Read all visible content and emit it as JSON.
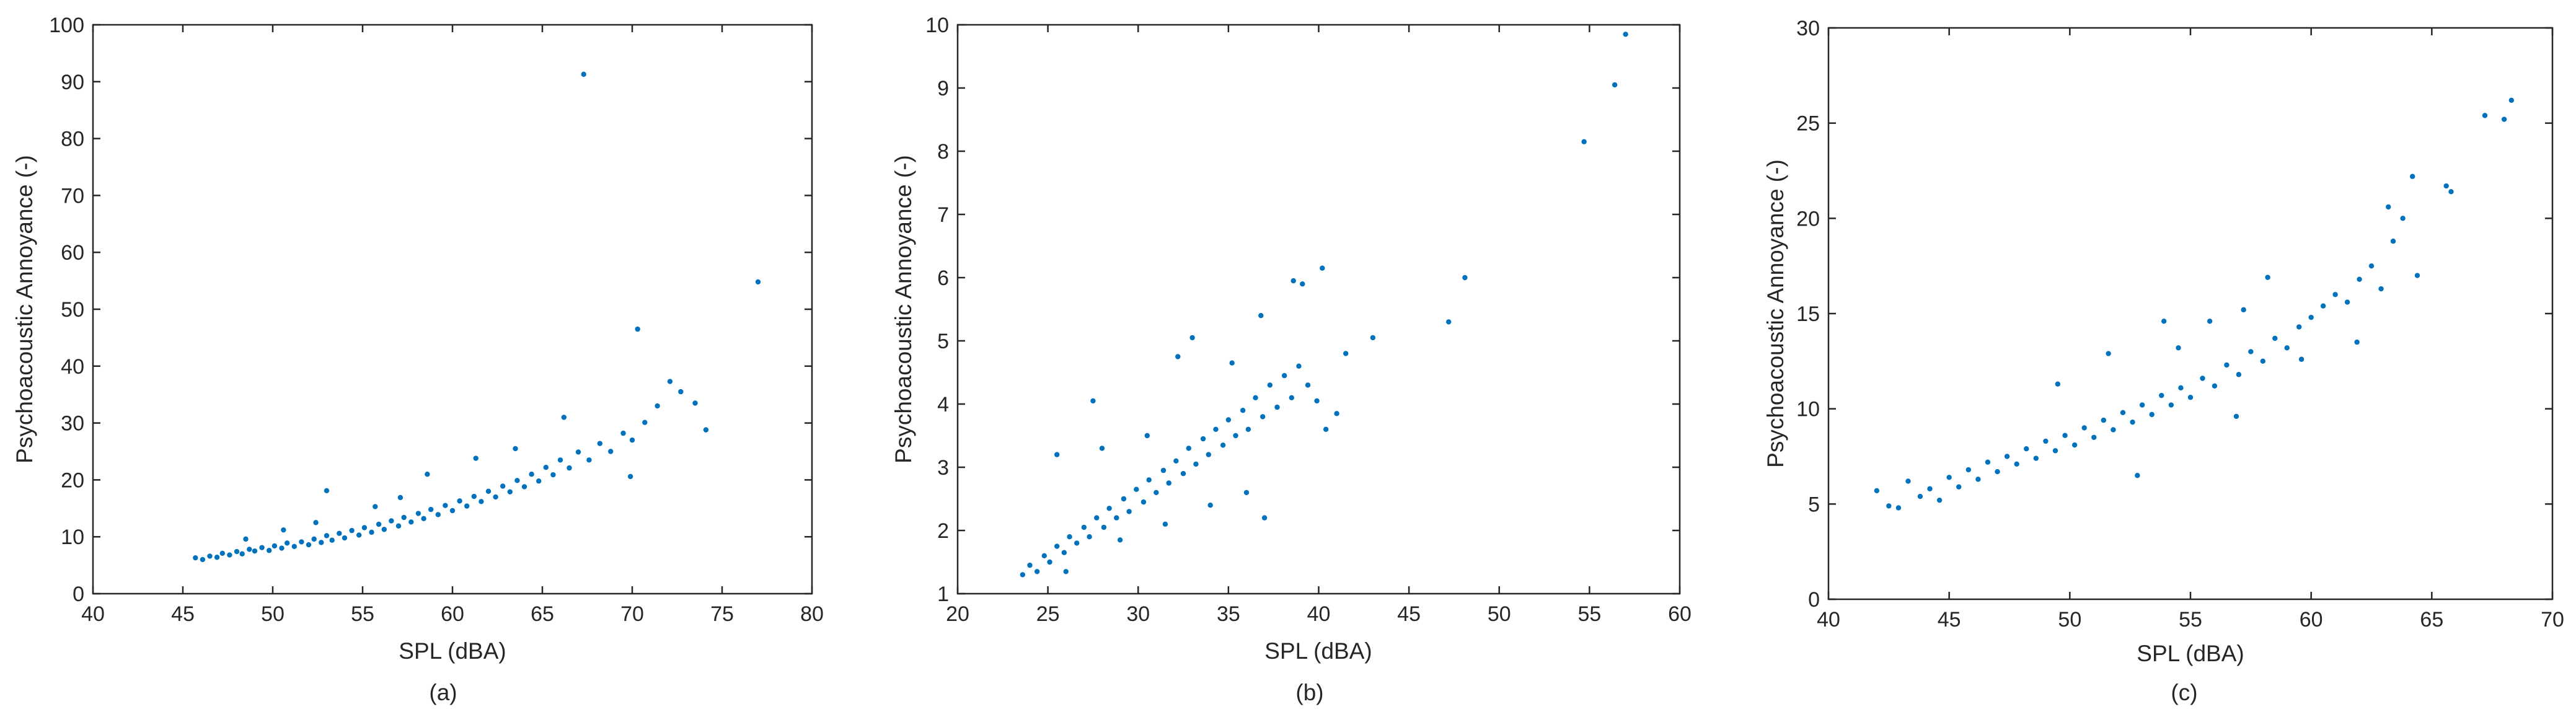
{
  "figure": {
    "panel_labels": [
      "(a)",
      "(b)",
      "(c)"
    ]
  },
  "colors": {
    "marker": "#0072BD",
    "axis": "#262626",
    "background": "#ffffff"
  },
  "chart_data": [
    {
      "type": "scatter",
      "title": "",
      "xlabel": "SPL (dBA)",
      "ylabel": "Psychoacoustic Annoyance (-)",
      "xlim": [
        40,
        80
      ],
      "ylim": [
        0,
        100
      ],
      "xticks": [
        40,
        45,
        50,
        55,
        60,
        65,
        70,
        75,
        80
      ],
      "yticks": [
        0,
        10,
        20,
        30,
        40,
        50,
        60,
        70,
        80,
        90,
        100
      ],
      "grid": false,
      "series": [
        {
          "points": [
            [
              45.7,
              6.3
            ],
            [
              46.1,
              6.0
            ],
            [
              46.5,
              6.6
            ],
            [
              46.9,
              6.4
            ],
            [
              47.2,
              7.1
            ],
            [
              47.6,
              6.8
            ],
            [
              48.0,
              7.4
            ],
            [
              48.3,
              7.0
            ],
            [
              48.7,
              7.8
            ],
            [
              49.0,
              7.5
            ],
            [
              49.4,
              8.1
            ],
            [
              49.8,
              7.6
            ],
            [
              50.1,
              8.4
            ],
            [
              50.5,
              8.0
            ],
            [
              50.8,
              8.9
            ],
            [
              51.2,
              8.3
            ],
            [
              51.6,
              9.1
            ],
            [
              52.0,
              8.6
            ],
            [
              52.3,
              9.6
            ],
            [
              52.7,
              9.0
            ],
            [
              53.0,
              10.2
            ],
            [
              53.3,
              9.4
            ],
            [
              53.7,
              10.6
            ],
            [
              54.0,
              9.8
            ],
            [
              54.4,
              11.1
            ],
            [
              54.8,
              10.3
            ],
            [
              55.1,
              11.6
            ],
            [
              55.5,
              10.8
            ],
            [
              55.9,
              12.2
            ],
            [
              56.2,
              11.3
            ],
            [
              56.6,
              12.8
            ],
            [
              57.0,
              11.9
            ],
            [
              57.3,
              13.4
            ],
            [
              57.7,
              12.6
            ],
            [
              58.1,
              14.1
            ],
            [
              58.4,
              13.2
            ],
            [
              58.8,
              14.8
            ],
            [
              59.2,
              13.9
            ],
            [
              59.6,
              15.5
            ],
            [
              60.0,
              14.6
            ],
            [
              60.4,
              16.3
            ],
            [
              60.8,
              15.4
            ],
            [
              61.2,
              17.1
            ],
            [
              61.6,
              16.2
            ],
            [
              62.0,
              18.0
            ],
            [
              62.4,
              17.0
            ],
            [
              62.8,
              18.9
            ],
            [
              63.2,
              17.9
            ],
            [
              63.6,
              19.9
            ],
            [
              64.0,
              18.8
            ],
            [
              64.4,
              21.0
            ],
            [
              64.8,
              19.8
            ],
            [
              65.2,
              22.2
            ],
            [
              65.6,
              20.9
            ],
            [
              66.0,
              23.5
            ],
            [
              66.5,
              22.1
            ],
            [
              67.0,
              24.9
            ],
            [
              67.6,
              23.5
            ],
            [
              68.2,
              26.4
            ],
            [
              68.8,
              25.0
            ],
            [
              69.5,
              28.2
            ],
            [
              70.0,
              27.0
            ],
            [
              70.7,
              30.1
            ],
            [
              71.4,
              33.0
            ],
            [
              72.1,
              37.3
            ],
            [
              72.7,
              35.5
            ],
            [
              73.5,
              33.5
            ],
            [
              74.1,
              28.8
            ],
            [
              69.9,
              20.6
            ],
            [
              70.3,
              46.5
            ],
            [
              67.3,
              91.3
            ],
            [
              77.0,
              54.8
            ],
            [
              53.0,
              18.1
            ],
            [
              58.6,
              21.0
            ],
            [
              61.3,
              23.8
            ],
            [
              63.5,
              25.5
            ],
            [
              66.2,
              31.0
            ],
            [
              50.6,
              11.2
            ],
            [
              48.5,
              9.6
            ],
            [
              55.7,
              15.3
            ],
            [
              57.1,
              16.9
            ],
            [
              52.4,
              12.5
            ]
          ]
        }
      ]
    },
    {
      "type": "scatter",
      "title": "",
      "xlabel": "SPL (dBA)",
      "ylabel": "Psychoacoustic Annoyance (-)",
      "xlim": [
        20,
        60
      ],
      "ylim": [
        1,
        10
      ],
      "xticks": [
        20,
        25,
        30,
        35,
        40,
        45,
        50,
        55,
        60
      ],
      "yticks": [
        1,
        2,
        3,
        4,
        5,
        6,
        7,
        8,
        9,
        10
      ],
      "grid": false,
      "series": [
        {
          "points": [
            [
              23.6,
              1.3
            ],
            [
              24.0,
              1.45
            ],
            [
              24.4,
              1.35
            ],
            [
              24.8,
              1.6
            ],
            [
              25.1,
              1.5
            ],
            [
              25.5,
              1.75
            ],
            [
              25.9,
              1.65
            ],
            [
              26.2,
              1.9
            ],
            [
              26.6,
              1.8
            ],
            [
              27.0,
              2.05
            ],
            [
              27.3,
              1.9
            ],
            [
              27.7,
              2.2
            ],
            [
              28.1,
              2.05
            ],
            [
              28.4,
              2.35
            ],
            [
              28.8,
              2.2
            ],
            [
              29.2,
              2.5
            ],
            [
              29.5,
              2.3
            ],
            [
              29.9,
              2.65
            ],
            [
              30.3,
              2.45
            ],
            [
              30.6,
              2.8
            ],
            [
              31.0,
              2.6
            ],
            [
              31.4,
              2.95
            ],
            [
              31.7,
              2.75
            ],
            [
              32.1,
              3.1
            ],
            [
              32.5,
              2.9
            ],
            [
              32.8,
              3.3
            ],
            [
              33.2,
              3.05
            ],
            [
              33.6,
              3.45
            ],
            [
              33.9,
              3.2
            ],
            [
              34.3,
              3.6
            ],
            [
              34.7,
              3.35
            ],
            [
              35.0,
              3.75
            ],
            [
              35.4,
              3.5
            ],
            [
              35.8,
              3.9
            ],
            [
              36.1,
              3.6
            ],
            [
              36.5,
              4.1
            ],
            [
              36.9,
              3.8
            ],
            [
              37.3,
              4.3
            ],
            [
              37.7,
              3.95
            ],
            [
              38.1,
              4.45
            ],
            [
              38.5,
              4.1
            ],
            [
              38.9,
              4.6
            ],
            [
              39.4,
              4.3
            ],
            [
              39.9,
              4.05
            ],
            [
              40.4,
              3.6
            ],
            [
              41.0,
              3.85
            ],
            [
              27.5,
              4.05
            ],
            [
              25.5,
              3.2
            ],
            [
              33.0,
              5.05
            ],
            [
              36.8,
              5.4
            ],
            [
              38.6,
              5.95
            ],
            [
              39.1,
              5.9
            ],
            [
              40.2,
              6.15
            ],
            [
              41.5,
              4.8
            ],
            [
              43.0,
              5.05
            ],
            [
              47.2,
              5.3
            ],
            [
              48.1,
              6.0
            ],
            [
              54.7,
              8.15
            ],
            [
              56.4,
              9.05
            ],
            [
              57.0,
              9.85
            ],
            [
              26.0,
              1.35
            ],
            [
              29.0,
              1.85
            ],
            [
              31.5,
              2.1
            ],
            [
              34.0,
              2.4
            ],
            [
              36.0,
              2.6
            ],
            [
              37.0,
              2.2
            ],
            [
              28.0,
              3.3
            ],
            [
              30.5,
              3.5
            ],
            [
              32.2,
              4.75
            ],
            [
              35.2,
              4.65
            ]
          ]
        }
      ]
    },
    {
      "type": "scatter",
      "title": "",
      "xlabel": "SPL (dBA)",
      "ylabel": "Psychoacoustic Annoyance (-)",
      "xlim": [
        40,
        70
      ],
      "ylim": [
        0,
        30
      ],
      "xticks": [
        40,
        45,
        50,
        55,
        60,
        65,
        70
      ],
      "yticks": [
        0,
        5,
        10,
        15,
        20,
        25,
        30
      ],
      "grid": false,
      "series": [
        {
          "points": [
            [
              42.0,
              5.7
            ],
            [
              42.5,
              4.9
            ],
            [
              42.9,
              4.8
            ],
            [
              43.3,
              6.2
            ],
            [
              43.8,
              5.4
            ],
            [
              44.2,
              5.8
            ],
            [
              44.6,
              5.2
            ],
            [
              45.0,
              6.4
            ],
            [
              45.4,
              5.9
            ],
            [
              45.8,
              6.8
            ],
            [
              46.2,
              6.3
            ],
            [
              46.6,
              7.2
            ],
            [
              47.0,
              6.7
            ],
            [
              47.4,
              7.5
            ],
            [
              47.8,
              7.1
            ],
            [
              48.2,
              7.9
            ],
            [
              48.6,
              7.4
            ],
            [
              49.0,
              8.3
            ],
            [
              49.4,
              7.8
            ],
            [
              49.8,
              8.6
            ],
            [
              50.2,
              8.1
            ],
            [
              50.6,
              9.0
            ],
            [
              51.0,
              8.5
            ],
            [
              51.4,
              9.4
            ],
            [
              51.8,
              8.9
            ],
            [
              52.2,
              9.8
            ],
            [
              52.6,
              9.3
            ],
            [
              53.0,
              10.2
            ],
            [
              53.4,
              9.7
            ],
            [
              53.8,
              10.7
            ],
            [
              54.2,
              10.2
            ],
            [
              54.6,
              11.1
            ],
            [
              55.0,
              10.6
            ],
            [
              55.5,
              11.6
            ],
            [
              56.0,
              11.2
            ],
            [
              56.5,
              12.3
            ],
            [
              57.0,
              11.8
            ],
            [
              57.5,
              13.0
            ],
            [
              58.0,
              12.5
            ],
            [
              58.5,
              13.7
            ],
            [
              59.0,
              13.2
            ],
            [
              59.5,
              14.3
            ],
            [
              60.0,
              14.8
            ],
            [
              60.5,
              15.4
            ],
            [
              61.0,
              16.0
            ],
            [
              61.5,
              15.6
            ],
            [
              62.0,
              16.8
            ],
            [
              62.5,
              17.5
            ],
            [
              62.9,
              16.3
            ],
            [
              63.2,
              20.6
            ],
            [
              63.4,
              18.8
            ],
            [
              63.8,
              20.0
            ],
            [
              64.2,
              22.2
            ],
            [
              64.4,
              17.0
            ],
            [
              65.6,
              21.7
            ],
            [
              65.8,
              21.4
            ],
            [
              67.2,
              25.4
            ],
            [
              68.0,
              25.2
            ],
            [
              68.3,
              26.2
            ],
            [
              49.5,
              11.3
            ],
            [
              51.6,
              12.9
            ],
            [
              53.9,
              14.6
            ],
            [
              55.8,
              14.6
            ],
            [
              57.2,
              15.2
            ],
            [
              58.2,
              16.9
            ],
            [
              52.8,
              6.5
            ],
            [
              56.9,
              9.6
            ],
            [
              59.6,
              12.6
            ],
            [
              61.9,
              13.5
            ],
            [
              54.5,
              13.2
            ]
          ]
        }
      ]
    }
  ]
}
